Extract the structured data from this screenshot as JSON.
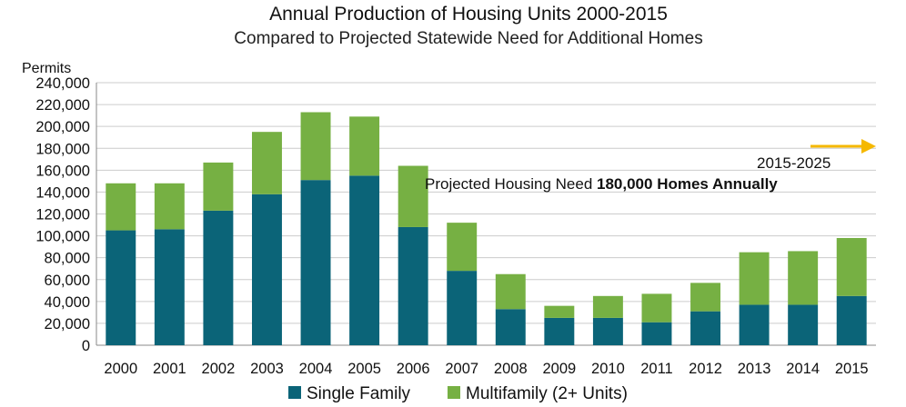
{
  "chart_data": {
    "type": "bar",
    "stacked": true,
    "title": "Annual Production of Housing Units 2000-2015",
    "subtitle": "Compared to Projected Statewide Need for Additional Homes",
    "ylabel": "Permits",
    "xlabel": "",
    "ylim": [
      0,
      240000
    ],
    "yticks": [
      0,
      20000,
      40000,
      60000,
      80000,
      100000,
      120000,
      140000,
      160000,
      180000,
      200000,
      220000,
      240000
    ],
    "ytick_labels": [
      "0",
      "20,000",
      "40,000",
      "60,000",
      "80,000",
      "100,000",
      "120,000",
      "140,000",
      "160,000",
      "180,000",
      "200,000",
      "220,000",
      "240,000"
    ],
    "grid": true,
    "legend_position": "bottom",
    "categories": [
      "2000",
      "2001",
      "2002",
      "2003",
      "2004",
      "2005",
      "2006",
      "2007",
      "2008",
      "2009",
      "2010",
      "2011",
      "2012",
      "2013",
      "2014",
      "2015"
    ],
    "series": [
      {
        "name": "Single Family",
        "color": "#0b6478",
        "values": [
          105000,
          106000,
          123000,
          138000,
          151000,
          155000,
          108000,
          68000,
          33000,
          25000,
          25000,
          21000,
          31000,
          37000,
          37000,
          45000
        ]
      },
      {
        "name": "Multifamily (2+ Units)",
        "color": "#76b043",
        "values": [
          43000,
          42000,
          44000,
          57000,
          62000,
          54000,
          56000,
          44000,
          32000,
          11000,
          20000,
          26000,
          26000,
          48000,
          49000,
          53000
        ]
      }
    ],
    "annotations": {
      "period": "2015-2025",
      "need_prefix": "Projected Housing Need ",
      "need_bold": "180,000 Homes Annually",
      "arrow_color": "#f5b800"
    },
    "colors": {
      "gridline": "#cccccc",
      "axis": "#888888"
    }
  }
}
